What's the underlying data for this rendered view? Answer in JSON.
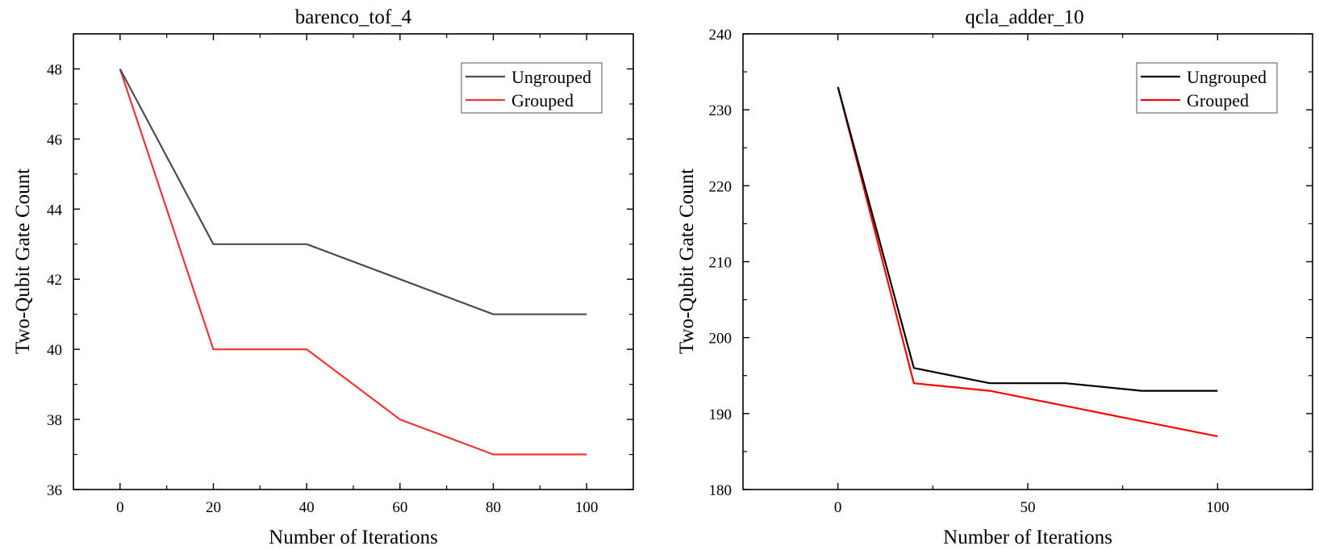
{
  "chart_data": [
    {
      "type": "line",
      "title": "barenco_tof_4",
      "xlabel": "Number of Iterations",
      "ylabel": "Two-Qubit Gate Count",
      "x": [
        0,
        20,
        40,
        60,
        80,
        100
      ],
      "xlim": [
        -10,
        110
      ],
      "ylim": [
        36,
        49
      ],
      "xticks": [
        0,
        20,
        40,
        60,
        80,
        100
      ],
      "yticks": [
        36,
        38,
        40,
        42,
        44,
        46,
        48
      ],
      "xtick_labels": [
        "0",
        "20",
        "40",
        "60",
        "80",
        "100"
      ],
      "ytick_labels": [
        "36",
        "38",
        "40",
        "42",
        "44",
        "46",
        "48"
      ],
      "legend_position": "top-right",
      "series": [
        {
          "name": "Ungrouped",
          "color": "#4d4d4d",
          "values": [
            48,
            43,
            43,
            42,
            41,
            41
          ]
        },
        {
          "name": "Grouped",
          "color": "#f03535",
          "values": [
            48,
            40,
            40,
            38,
            37,
            37
          ]
        }
      ]
    },
    {
      "type": "line",
      "title": "qcla_adder_10",
      "xlabel": "Number of Iterations",
      "ylabel": "Two-Qubit Gate Count",
      "x": [
        0,
        20,
        40,
        60,
        80,
        100
      ],
      "xlim": [
        -25,
        125
      ],
      "ylim": [
        180,
        240
      ],
      "xticks": [
        0,
        50,
        100
      ],
      "yticks": [
        180,
        190,
        200,
        210,
        220,
        230,
        240
      ],
      "xtick_labels": [
        "0",
        "50",
        "100"
      ],
      "ytick_labels": [
        "180",
        "190",
        "200",
        "210",
        "220",
        "230",
        "240"
      ],
      "legend_position": "top-right",
      "series": [
        {
          "name": "Ungrouped",
          "color": "#000000",
          "values": [
            233,
            196,
            194,
            194,
            193,
            193
          ]
        },
        {
          "name": "Grouped",
          "color": "#ff0000",
          "values": [
            233,
            194,
            193,
            191,
            189,
            187
          ]
        }
      ]
    }
  ]
}
